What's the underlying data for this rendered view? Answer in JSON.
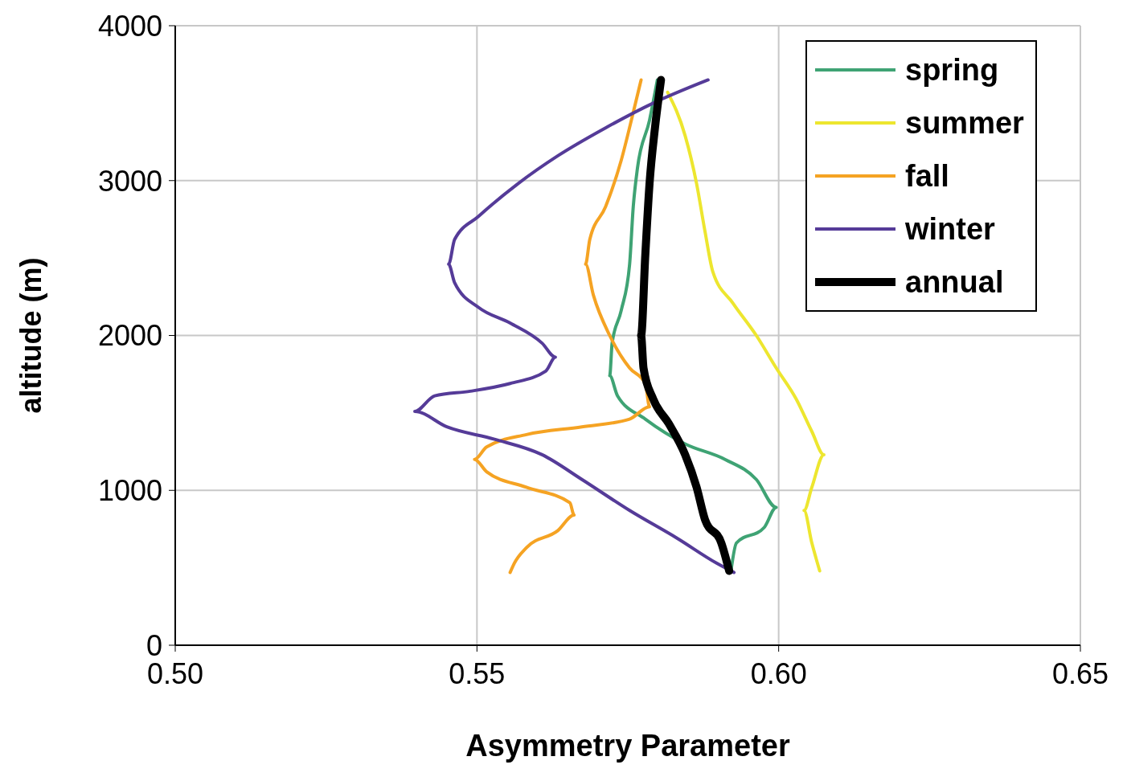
{
  "chart_data": {
    "type": "line",
    "xlabel": "Asymmetry Parameter",
    "ylabel": "altitude (m)",
    "xlim": [
      0.5,
      0.65
    ],
    "xticks": [
      {
        "value": 0.5,
        "label": "0.50"
      },
      {
        "value": 0.55,
        "label": "0.55"
      },
      {
        "value": 0.6,
        "label": "0.60"
      },
      {
        "value": 0.65,
        "label": "0.65"
      }
    ],
    "ylim": [
      0,
      4000
    ],
    "yticks": [
      0,
      1000,
      2000,
      3000,
      4000
    ],
    "grid": true,
    "legend": "top right",
    "line_style": "solid",
    "series": [
      {
        "name": "spring",
        "color": "#3fa374",
        "x": [
          0.5799,
          0.5786,
          0.5766,
          0.5759,
          0.5753,
          0.5739,
          0.5724,
          0.572,
          0.5733,
          0.5779,
          0.5845,
          0.5911,
          0.5963,
          0.5996,
          0.5976,
          0.593,
          0.5921
        ],
        "values": [
          3650,
          3390,
          3080,
          2830,
          2460,
          2160,
          1950,
          1740,
          1610,
          1460,
          1300,
          1200,
          1070,
          890,
          760,
          660,
          480
        ]
      },
      {
        "name": "summer",
        "color": "#ede62f",
        "x": [
          0.5816,
          0.5845,
          0.5864,
          0.5878,
          0.5891,
          0.5924,
          0.5963,
          0.5996,
          0.6029,
          0.6055,
          0.6075,
          0.6055,
          0.6042,
          0.6055,
          0.6068
        ],
        "values": [
          3570,
          3290,
          2980,
          2670,
          2410,
          2210,
          2000,
          1790,
          1590,
          1380,
          1230,
          1020,
          870,
          660,
          480
        ]
      },
      {
        "name": "fall",
        "color": "#f5a323",
        "x": [
          0.5772,
          0.5759,
          0.5739,
          0.5713,
          0.5687,
          0.568,
          0.5693,
          0.572,
          0.5753,
          0.5779,
          0.5786,
          0.5753,
          0.5674,
          0.5582,
          0.5516,
          0.5496,
          0.5516,
          0.5582,
          0.5654,
          0.5661,
          0.5634,
          0.5582,
          0.5562,
          0.5555
        ],
        "values": [
          3650,
          3440,
          3130,
          2830,
          2620,
          2460,
          2260,
          2000,
          1790,
          1690,
          1540,
          1460,
          1410,
          1360,
          1280,
          1200,
          1120,
          1020,
          920,
          840,
          740,
          630,
          530,
          470
        ]
      },
      {
        "name": "winter",
        "color": "#553b98",
        "x": [
          0.5883,
          0.5792,
          0.5713,
          0.5634,
          0.5568,
          0.5503,
          0.5463,
          0.5453,
          0.5463,
          0.5503,
          0.5555,
          0.5608,
          0.563,
          0.5614,
          0.5555,
          0.5489,
          0.543,
          0.5397,
          0.545,
          0.5529,
          0.5608,
          0.5674,
          0.5753,
          0.5832,
          0.5897,
          0.5926
        ],
        "values": [
          3650,
          3500,
          3340,
          3160,
          2980,
          2770,
          2620,
          2460,
          2340,
          2180,
          2080,
          1950,
          1860,
          1770,
          1690,
          1640,
          1610,
          1510,
          1410,
          1330,
          1230,
          1070,
          870,
          690,
          530,
          470
        ]
      },
      {
        "name": "annual",
        "color": "#000000",
        "x": [
          0.5805,
          0.5795,
          0.5786,
          0.5779,
          0.5772,
          0.5776,
          0.5792,
          0.5818,
          0.5845,
          0.5864,
          0.5878,
          0.5905,
          0.5918
        ],
        "values": [
          3650,
          3340,
          2980,
          2520,
          2000,
          1790,
          1590,
          1430,
          1230,
          1020,
          810,
          660,
          480
        ]
      }
    ]
  }
}
